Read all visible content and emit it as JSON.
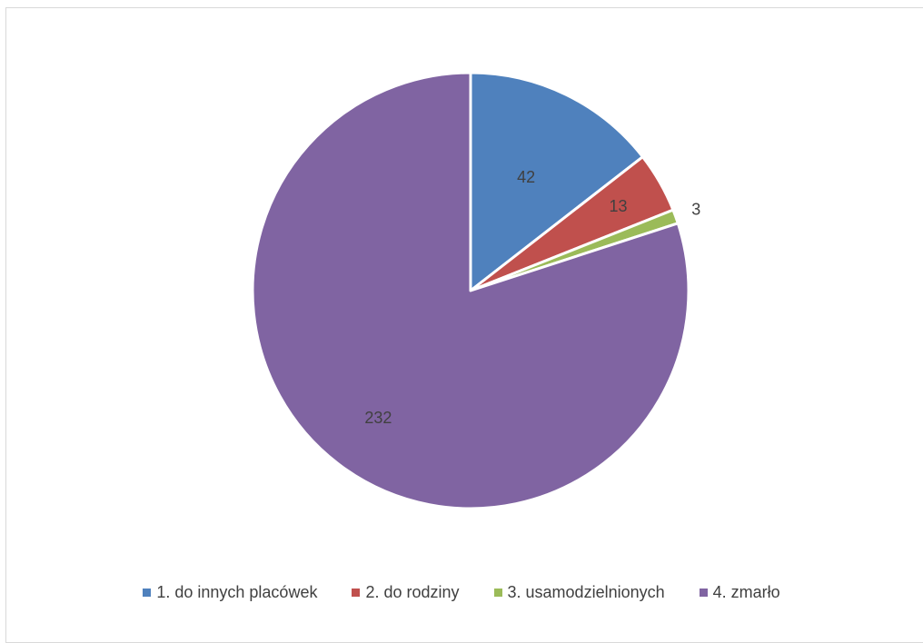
{
  "chart_data": {
    "type": "pie",
    "title": "",
    "categories": [
      "1. do innych placówek",
      "2. do rodziny",
      "3. usamodzielnionych",
      "4. zmarło"
    ],
    "values": [
      42,
      13,
      3,
      232
    ],
    "colors": [
      "#4f81bd",
      "#c0504d",
      "#9bbb59",
      "#8064a2"
    ],
    "data_labels": [
      "42",
      "13",
      "3",
      "232"
    ],
    "legend": "bottom",
    "start_angle": "12 o'clock",
    "direction": "clockwise"
  }
}
